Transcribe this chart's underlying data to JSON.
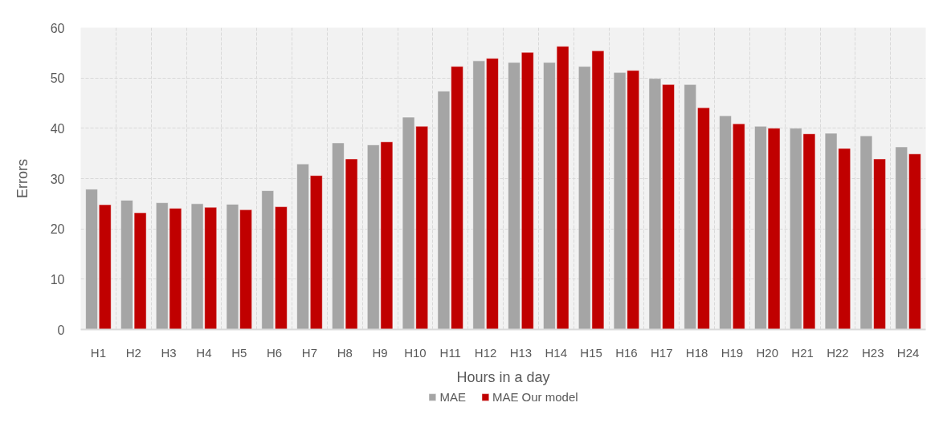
{
  "chart_data": {
    "type": "bar",
    "xlabel": "Hours in a day",
    "ylabel": "Errors",
    "categories": [
      "H1",
      "H2",
      "H3",
      "H4",
      "H5",
      "H6",
      "H7",
      "H8",
      "H9",
      "H10",
      "H11",
      "H12",
      "H13",
      "H14",
      "H15",
      "H16",
      "H17",
      "H18",
      "H19",
      "H20",
      "H21",
      "H22",
      "H23",
      "H24"
    ],
    "series": [
      {
        "name": "MAE",
        "color": "#a5a5a5",
        "values": [
          27.9,
          25.7,
          25.2,
          25.0,
          24.9,
          27.6,
          32.9,
          37.1,
          36.7,
          42.2,
          47.4,
          53.4,
          53.1,
          53.1,
          52.3,
          51.1,
          49.9,
          48.7,
          42.5,
          40.4,
          40.0,
          39.0,
          38.5,
          36.3
        ]
      },
      {
        "name": "MAE Our model",
        "color": "#c00000",
        "values": [
          24.8,
          23.2,
          24.1,
          24.3,
          23.8,
          24.4,
          30.6,
          33.9,
          37.3,
          40.4,
          52.3,
          53.9,
          55.1,
          56.3,
          55.4,
          51.5,
          48.7,
          44.1,
          40.9,
          40.0,
          38.9,
          36.0,
          33.9,
          34.9
        ]
      }
    ],
    "ylim": [
      0,
      60
    ],
    "yticks": [
      0,
      10,
      20,
      30,
      40,
      50,
      60
    ],
    "grid": true,
    "legend": "bottom"
  }
}
